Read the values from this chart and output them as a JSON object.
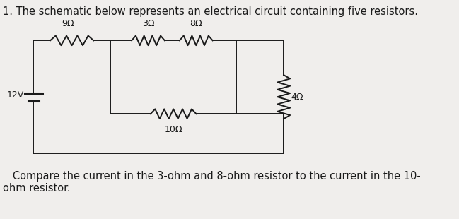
{
  "title": "1. The schematic below represents an electrical circuit containing five resistors.",
  "bg_color": "#f0eeec",
  "text_color": "#1a1a1a",
  "caption": "   Compare the current in the 3-ohm and 8-ohm resistor to the current in the 10-\nohm resistor.",
  "title_fontsize": 10.5,
  "caption_fontsize": 10.5,
  "circuit": {
    "resistor_9_label": "9Ω",
    "resistor_3_label": "3Ω",
    "resistor_8_label": "8Ω",
    "resistor_10_label": "10Ω",
    "resistor_4_label": "4Ω",
    "battery_label": "12V"
  }
}
